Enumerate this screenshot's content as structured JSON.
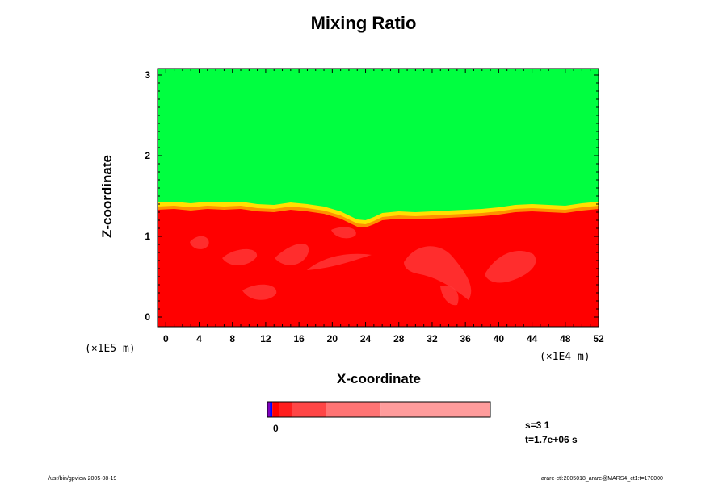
{
  "chart_data": {
    "type": "heatmap",
    "title": "Mixing Ratio",
    "xlabel": "X-coordinate",
    "ylabel": "Z-coordinate",
    "x_unit": "(×1E4 m)",
    "y_unit": "(×1E5 m)",
    "xlim": [
      -1,
      52
    ],
    "ylim": [
      -0.12,
      3.08
    ],
    "x_ticks": [
      0,
      4,
      8,
      12,
      16,
      20,
      24,
      28,
      32,
      36,
      40,
      44,
      48,
      52
    ],
    "y_ticks": [
      0,
      1,
      2,
      3
    ],
    "grid": false,
    "interface_profile": {
      "x": [
        -1,
        1,
        3,
        5,
        7,
        9,
        11,
        13,
        15,
        17,
        19,
        20,
        21,
        22,
        23,
        24,
        25,
        26,
        28,
        30,
        32,
        34,
        36,
        38,
        40,
        42,
        44,
        46,
        48,
        50,
        52
      ],
      "z": [
        1.33,
        1.34,
        1.32,
        1.34,
        1.33,
        1.34,
        1.31,
        1.3,
        1.33,
        1.31,
        1.28,
        1.25,
        1.22,
        1.17,
        1.12,
        1.11,
        1.15,
        1.2,
        1.22,
        1.21,
        1.22,
        1.23,
        1.24,
        1.25,
        1.27,
        1.3,
        1.31,
        1.3,
        1.29,
        1.32,
        1.34
      ]
    },
    "regions": [
      {
        "name": "upper",
        "color": "#00ff40"
      },
      {
        "name": "lower",
        "color": "#ff0000"
      }
    ],
    "colorbar": {
      "tick_label": "0",
      "segments": [
        {
          "color": "#7f00bf",
          "weight": 3
        },
        {
          "color": "#0000ff",
          "weight": 3
        },
        {
          "color": "#ff0000",
          "weight": 8
        },
        {
          "color": "#ff1e1e",
          "weight": 16
        },
        {
          "color": "#ff4646",
          "weight": 40
        },
        {
          "color": "#ff7474",
          "weight": 66
        },
        {
          "color": "#ff9c9c",
          "weight": 132
        }
      ]
    },
    "step_label": "s=3 1",
    "time_label": "t=1.7e+06 s"
  },
  "footer": {
    "left": "/usr/bin/gpview 2005-08-19",
    "right": "arare-ctl:2005018_arare@MARS4_ct1:t=170000"
  },
  "colors": {
    "green": "#00ff40",
    "red": "#ff0000",
    "pale_red": "#ff3c3c",
    "orange": "#ff9000",
    "yellow": "#ffe000"
  }
}
